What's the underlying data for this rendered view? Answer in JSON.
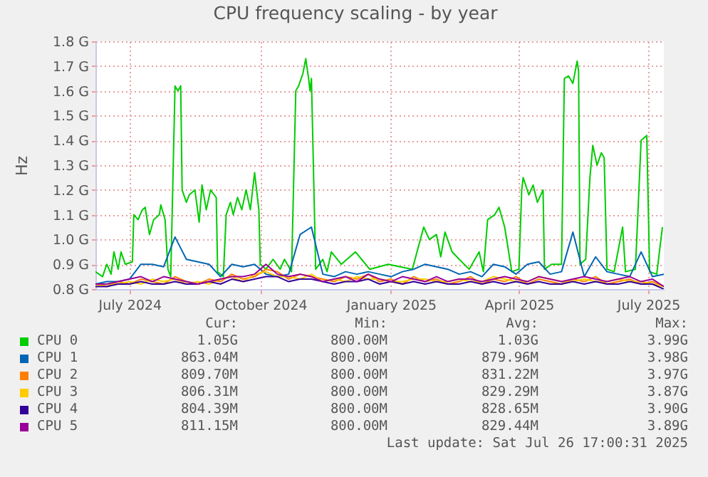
{
  "chart_data": {
    "type": "line",
    "title": "CPU frequency scaling - by year",
    "ylabel": "Hz",
    "xlim": [
      "2024-06-21",
      "2025-07-26"
    ],
    "xticks": [
      {
        "value": "2024-07-15",
        "label": "July 2024"
      },
      {
        "value": "2024-10-15",
        "label": "October 2024"
      },
      {
        "value": "2025-01-15",
        "label": "January 2025"
      },
      {
        "value": "2025-04-15",
        "label": "April 2025"
      },
      {
        "value": "2025-07-15",
        "label": "July 2025"
      }
    ],
    "ylim": [
      0.8,
      1.8
    ],
    "yticks": [
      {
        "value": 0.8,
        "label": "0.8 G"
      },
      {
        "value": 0.9,
        "label": "0.9 G"
      },
      {
        "value": 1.0,
        "label": "1.0 G"
      },
      {
        "value": 1.1,
        "label": "1.1 G"
      },
      {
        "value": 1.2,
        "label": "1.2 G"
      },
      {
        "value": 1.3,
        "label": "1.3 G"
      },
      {
        "value": 1.4,
        "label": "1.4 G"
      },
      {
        "value": 1.5,
        "label": "1.5 G"
      },
      {
        "value": 1.6,
        "label": "1.6 G"
      },
      {
        "value": 1.7,
        "label": "1.7 G"
      },
      {
        "value": 1.8,
        "label": "1.8 G"
      }
    ],
    "grid": true,
    "legend": "bottom",
    "x": [
      "2024-06-21",
      "2024-06-29",
      "2024-07-07",
      "2024-07-15",
      "2024-07-23",
      "2024-07-31",
      "2024-08-08",
      "2024-08-16",
      "2024-08-24",
      "2024-09-01",
      "2024-09-09",
      "2024-09-17",
      "2024-09-25",
      "2024-10-03",
      "2024-10-11",
      "2024-10-19",
      "2024-10-27",
      "2024-11-04",
      "2024-11-12",
      "2024-11-20",
      "2024-11-28",
      "2024-12-06",
      "2024-12-14",
      "2024-12-22",
      "2024-12-30",
      "2025-01-07",
      "2025-01-15",
      "2025-01-23",
      "2025-01-31",
      "2025-02-08",
      "2025-02-16",
      "2025-02-24",
      "2025-03-04",
      "2025-03-12",
      "2025-03-20",
      "2025-03-28",
      "2025-04-05",
      "2025-04-13",
      "2025-04-21",
      "2025-04-29",
      "2025-05-07",
      "2025-05-15",
      "2025-05-23",
      "2025-05-31",
      "2025-06-08",
      "2025-06-16",
      "2025-06-24",
      "2025-07-02",
      "2025-07-10",
      "2025-07-18",
      "2025-07-26"
    ],
    "series": [
      {
        "name": "CPU 0",
        "color": "#00cc00",
        "x": [
          "2024-06-21",
          "2024-06-26",
          "2024-06-29",
          "2024-07-02",
          "2024-07-04",
          "2024-07-07",
          "2024-07-09",
          "2024-07-12",
          "2024-07-17",
          "2024-07-18",
          "2024-07-21",
          "2024-07-24",
          "2024-07-26",
          "2024-07-29",
          "2024-08-01",
          "2024-08-05",
          "2024-08-06",
          "2024-08-09",
          "2024-08-11",
          "2024-08-13",
          "2024-08-16",
          "2024-08-18",
          "2024-08-20",
          "2024-08-21",
          "2024-08-24",
          "2024-08-26",
          "2024-08-30",
          "2024-09-02",
          "2024-09-04",
          "2024-09-07",
          "2024-09-10",
          "2024-09-14",
          "2024-09-15",
          "2024-09-19",
          "2024-09-21",
          "2024-09-24",
          "2024-09-26",
          "2024-09-29",
          "2024-10-02",
          "2024-10-05",
          "2024-10-08",
          "2024-10-11",
          "2024-10-14",
          "2024-10-15",
          "2024-10-19",
          "2024-10-24",
          "2024-10-29",
          "2024-11-01",
          "2024-11-06",
          "2024-11-09",
          "2024-11-11",
          "2024-11-14",
          "2024-11-16",
          "2024-11-18",
          "2024-11-19",
          "2024-11-20",
          "2024-11-23",
          "2024-11-28",
          "2024-12-01",
          "2024-12-04",
          "2024-12-11",
          "2024-12-21",
          "2024-12-31",
          "2025-01-13",
          "2025-01-30",
          "2025-02-07",
          "2025-02-11",
          "2025-02-16",
          "2025-02-19",
          "2025-02-22",
          "2025-02-27",
          "2025-03-04",
          "2025-03-11",
          "2025-03-18",
          "2025-03-21",
          "2025-03-24",
          "2025-03-29",
          "2025-04-01",
          "2025-04-05",
          "2025-04-10",
          "2025-04-15",
          "2025-04-17",
          "2025-04-18",
          "2025-04-22",
          "2025-04-25",
          "2025-04-28",
          "2025-05-02",
          "2025-05-03",
          "2025-05-08",
          "2025-05-15",
          "2025-05-17",
          "2025-05-20",
          "2025-05-23",
          "2025-05-26",
          "2025-05-27",
          "2025-05-28",
          "2025-06-01",
          "2025-06-04",
          "2025-06-06",
          "2025-06-09",
          "2025-06-12",
          "2025-06-14",
          "2025-06-16",
          "2025-06-21",
          "2025-06-27",
          "2025-06-29",
          "2025-07-06",
          "2025-07-10",
          "2025-07-14",
          "2025-07-16",
          "2025-07-21",
          "2025-07-25"
        ],
        "values": [
          0.87,
          0.85,
          0.9,
          0.86,
          0.95,
          0.88,
          0.95,
          0.9,
          0.91,
          1.1,
          1.08,
          1.12,
          1.13,
          1.02,
          1.08,
          1.1,
          1.14,
          1.08,
          0.88,
          0.85,
          1.62,
          1.6,
          1.62,
          1.2,
          1.15,
          1.18,
          1.2,
          1.07,
          1.22,
          1.12,
          1.2,
          1.17,
          0.87,
          0.85,
          1.1,
          1.15,
          1.1,
          1.17,
          1.12,
          1.2,
          1.12,
          1.27,
          1.12,
          0.9,
          0.88,
          0.92,
          0.88,
          0.92,
          0.87,
          1.6,
          1.62,
          1.67,
          1.73,
          1.65,
          1.6,
          1.65,
          0.88,
          0.92,
          0.87,
          0.95,
          0.9,
          0.95,
          0.88,
          0.9,
          0.88,
          1.05,
          1.0,
          1.02,
          0.93,
          1.03,
          0.95,
          0.92,
          0.88,
          0.95,
          0.87,
          1.08,
          1.1,
          1.13,
          1.05,
          0.87,
          0.88,
          1.2,
          1.25,
          1.18,
          1.22,
          1.15,
          1.2,
          0.88,
          0.9,
          0.9,
          1.65,
          1.66,
          1.63,
          1.72,
          1.68,
          0.9,
          0.92,
          1.25,
          1.38,
          1.3,
          1.35,
          1.33,
          0.88,
          0.87,
          1.05,
          0.87,
          0.88,
          1.4,
          1.42,
          0.87,
          0.86,
          1.05
        ]
      },
      {
        "name": "CPU 1",
        "color": "#0066b3",
        "values": [
          0.82,
          0.83,
          0.83,
          0.84,
          0.9,
          0.9,
          0.89,
          1.01,
          0.92,
          0.91,
          0.9,
          0.85,
          0.9,
          0.89,
          0.9,
          0.86,
          0.85,
          0.86,
          1.02,
          1.05,
          0.86,
          0.85,
          0.87,
          0.86,
          0.87,
          0.86,
          0.85,
          0.87,
          0.88,
          0.9,
          0.89,
          0.88,
          0.86,
          0.87,
          0.85,
          0.9,
          0.89,
          0.86,
          0.9,
          0.91,
          0.86,
          0.87,
          1.03,
          0.85,
          0.93,
          0.87,
          0.86,
          0.85,
          0.95,
          0.85,
          0.86
        ]
      },
      {
        "name": "CPU 2",
        "color": "#ff8000",
        "values": [
          0.82,
          0.81,
          0.83,
          0.82,
          0.84,
          0.83,
          0.82,
          0.85,
          0.83,
          0.82,
          0.84,
          0.83,
          0.86,
          0.84,
          0.85,
          0.88,
          0.87,
          0.84,
          0.86,
          0.85,
          0.84,
          0.83,
          0.85,
          0.84,
          0.86,
          0.83,
          0.84,
          0.82,
          0.85,
          0.83,
          0.84,
          0.82,
          0.83,
          0.85,
          0.82,
          0.84,
          0.83,
          0.85,
          0.82,
          0.84,
          0.83,
          0.82,
          0.84,
          0.83,
          0.85,
          0.82,
          0.83,
          0.84,
          0.82,
          0.83,
          0.81
        ]
      },
      {
        "name": "CPU 3",
        "color": "#ffcc00",
        "values": [
          0.81,
          0.82,
          0.82,
          0.83,
          0.82,
          0.84,
          0.83,
          0.84,
          0.82,
          0.83,
          0.82,
          0.84,
          0.85,
          0.83,
          0.86,
          0.87,
          0.85,
          0.85,
          0.84,
          0.86,
          0.83,
          0.84,
          0.83,
          0.85,
          0.84,
          0.84,
          0.83,
          0.83,
          0.84,
          0.84,
          0.83,
          0.83,
          0.84,
          0.83,
          0.83,
          0.85,
          0.84,
          0.83,
          0.83,
          0.85,
          0.84,
          0.83,
          0.83,
          0.84,
          0.83,
          0.83,
          0.84,
          0.83,
          0.83,
          0.82,
          0.81
        ]
      },
      {
        "name": "CPU 4",
        "color": "#330099",
        "values": [
          0.81,
          0.81,
          0.82,
          0.82,
          0.83,
          0.82,
          0.82,
          0.83,
          0.82,
          0.82,
          0.83,
          0.82,
          0.84,
          0.83,
          0.84,
          0.85,
          0.85,
          0.83,
          0.84,
          0.84,
          0.83,
          0.82,
          0.83,
          0.83,
          0.84,
          0.82,
          0.83,
          0.82,
          0.83,
          0.82,
          0.83,
          0.82,
          0.82,
          0.83,
          0.82,
          0.83,
          0.82,
          0.83,
          0.82,
          0.83,
          0.82,
          0.82,
          0.83,
          0.82,
          0.83,
          0.82,
          0.82,
          0.83,
          0.82,
          0.82,
          0.8
        ]
      },
      {
        "name": "CPU 5",
        "color": "#990099",
        "values": [
          0.82,
          0.82,
          0.83,
          0.84,
          0.85,
          0.83,
          0.85,
          0.84,
          0.83,
          0.82,
          0.83,
          0.84,
          0.85,
          0.85,
          0.86,
          0.9,
          0.86,
          0.85,
          0.86,
          0.85,
          0.83,
          0.84,
          0.85,
          0.83,
          0.86,
          0.84,
          0.83,
          0.85,
          0.84,
          0.83,
          0.85,
          0.83,
          0.84,
          0.84,
          0.83,
          0.84,
          0.85,
          0.84,
          0.83,
          0.85,
          0.84,
          0.83,
          0.84,
          0.85,
          0.84,
          0.83,
          0.84,
          0.85,
          0.83,
          0.84,
          0.81
        ]
      }
    ],
    "annotations": [
      "Cur:",
      "Min:",
      "Avg:",
      "Max:",
      "1.05G",
      "800.00M",
      "1.03G",
      "3.99G",
      "863.04M",
      "800.00M",
      "879.96M",
      "3.98G",
      "809.70M",
      "800.00M",
      "831.22M",
      "3.97G",
      "806.31M",
      "800.00M",
      "829.29M",
      "3.87G",
      "804.39M",
      "800.00M",
      "828.65M",
      "3.90G",
      "811.15M",
      "800.00M",
      "829.44M",
      "3.89G",
      "Last update: Sat Jul 26 17:00:31 2025"
    ]
  }
}
